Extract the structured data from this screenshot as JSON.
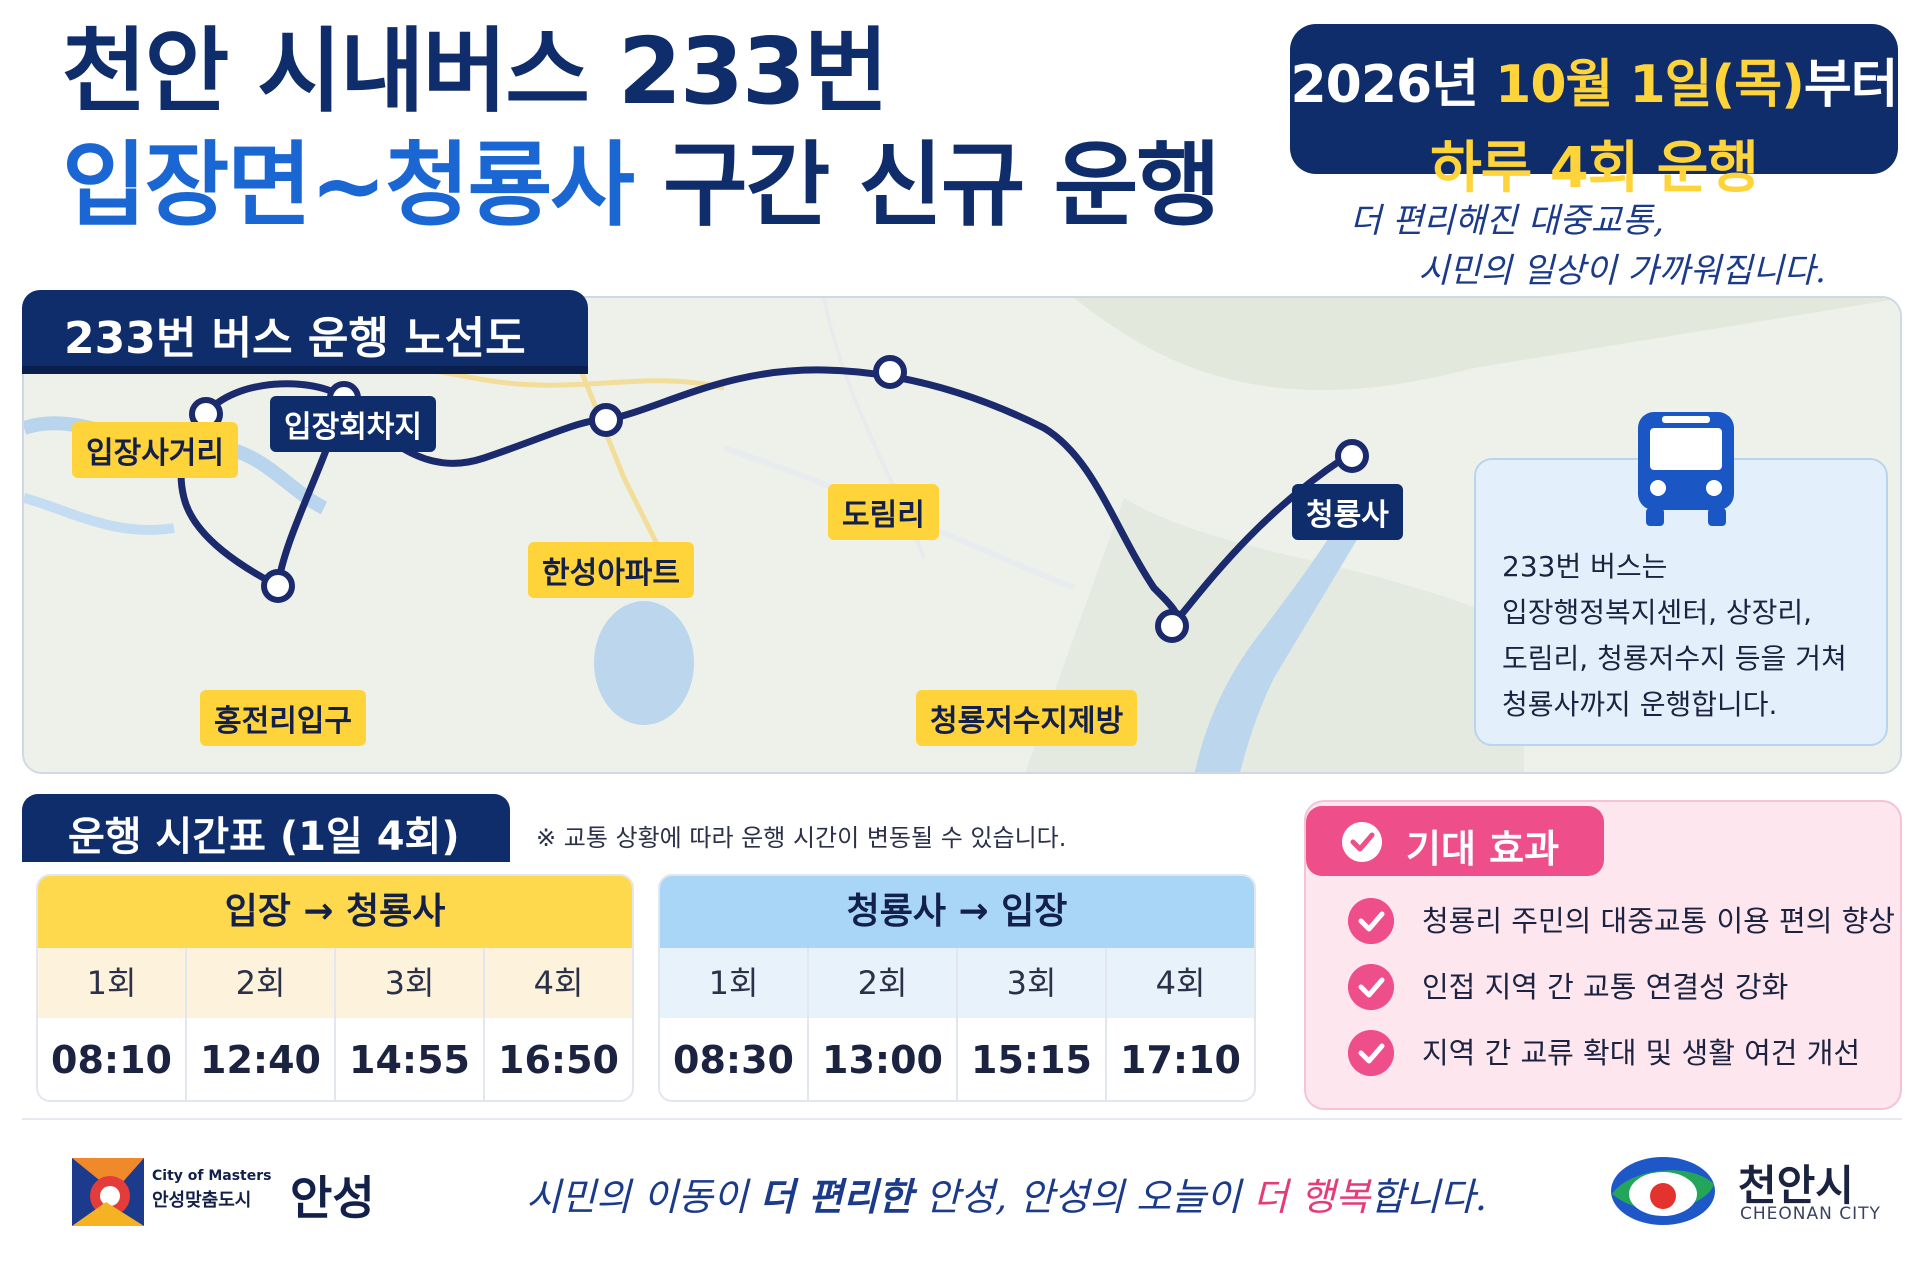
{
  "header": {
    "title_line1": "천안 시내버스 233번",
    "title_line2_blue": "입장면~청룡사",
    "title_line2_navy": " 구간 신규 운행",
    "date_line1_pre": "2026년 ",
    "date_line1_highlight": "10월 1일(목)",
    "date_line1_post": "부터",
    "date_line2": "하루 4회 운행",
    "slogan_line1": "더 편리해진 대중교통,",
    "slogan_line2": "시민의 일상이 가까워집니다."
  },
  "map": {
    "section_title": "233번 버스 운행 노선도",
    "stops": [
      {
        "name": "입장사거리",
        "style": "yellow"
      },
      {
        "name": "입장회차지",
        "style": "navy"
      },
      {
        "name": "홍전리입구",
        "style": "yellow"
      },
      {
        "name": "한성아파트",
        "style": "yellow"
      },
      {
        "name": "도림리",
        "style": "yellow"
      },
      {
        "name": "청룡저수지제방",
        "style": "yellow"
      },
      {
        "name": "청룡사",
        "style": "navy"
      }
    ],
    "route_color": "#1a2a6c",
    "info_lines": [
      "233번 버스는",
      "입장행정복지센터, 상장리,",
      "도림리, 청룡저수지 등을 거쳐",
      "청룡사까지 운행합니다."
    ],
    "info_icon": "bus-icon"
  },
  "timetable": {
    "section_title": "운행 시간표 (1일 4회)",
    "note": "※ 교통 상황에 따라 운행 시간이 변동될 수 있습니다.",
    "routes": [
      {
        "direction": "입장 → 청룡사",
        "runs": [
          "1회",
          "2회",
          "3회",
          "4회"
        ],
        "times": [
          "08:10",
          "12:40",
          "14:55",
          "16:50"
        ],
        "accent": "#ffd94d"
      },
      {
        "direction": "청룡사 → 입장",
        "runs": [
          "1회",
          "2회",
          "3회",
          "4회"
        ],
        "times": [
          "08:30",
          "13:00",
          "15:15",
          "17:10"
        ],
        "accent": "#a9d6f6"
      }
    ]
  },
  "effects": {
    "title": "기대 효과",
    "items": [
      "청룡리 주민의 대중교통 이용 편의 향상",
      "인접 지역 간 교통 연결성 강화",
      "지역 간 교류 확대 및 생활 여건 개선"
    ],
    "accent": "#ee4e8a"
  },
  "footer": {
    "anseong_small": "City of Masters",
    "anseong_mid": "안성맞춤도시",
    "anseong_big": "안성",
    "slogan_a": "시민의 이동이 ",
    "slogan_b": "더 편리한",
    "slogan_c": " 안성, 안성의 오늘이 ",
    "slogan_d": "더 행복",
    "slogan_e": "합니다.",
    "cheonan_name": "천안시",
    "cheonan_en": "CHEONAN CITY"
  }
}
